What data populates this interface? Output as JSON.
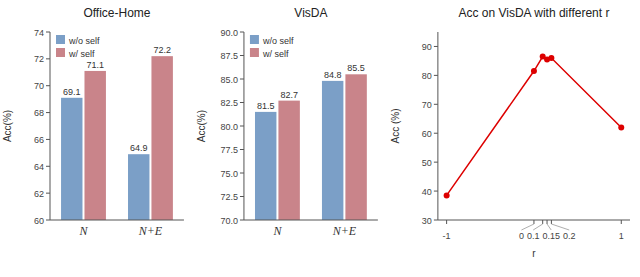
{
  "chart_data": [
    {
      "type": "bar",
      "title": "Office-Home",
      "ylabel": "Acc(%)",
      "categories": [
        "N",
        "N+E"
      ],
      "series": [
        {
          "name": "w/o self",
          "color": "#7b9fc7",
          "values": [
            69.1,
            64.9
          ]
        },
        {
          "name": "w/ self",
          "color": "#c9848a",
          "values": [
            71.1,
            72.2
          ]
        }
      ],
      "ylim": [
        60,
        74
      ],
      "yticks": [
        60,
        62,
        64,
        66,
        68,
        70,
        72,
        74
      ],
      "legend": "upper left",
      "data_labels": true,
      "grid": false
    },
    {
      "type": "bar",
      "title": "VisDA",
      "ylabel": "Acc(%)",
      "categories": [
        "N",
        "N+E"
      ],
      "series": [
        {
          "name": "w/o self",
          "color": "#7b9fc7",
          "values": [
            81.5,
            84.8
          ]
        },
        {
          "name": "w/ self",
          "color": "#c9848a",
          "values": [
            82.7,
            85.5
          ]
        }
      ],
      "ylim": [
        70.0,
        90.0
      ],
      "yticks": [
        {
          "value": 70,
          "label": "70.0"
        },
        72.5,
        {
          "value": 75,
          "label": "75.0"
        },
        77.5,
        {
          "value": 80,
          "label": "80.0"
        },
        82.5,
        {
          "value": 85,
          "label": "85.0"
        },
        87.5,
        {
          "value": 90,
          "label": "90.0"
        }
      ],
      "legend": "upper left",
      "data_labels": true,
      "grid": false
    },
    {
      "type": "line",
      "title": "Acc on VisDA with different r",
      "xlabel": "r",
      "ylabel": "Acc (%)",
      "x": [
        -1,
        0,
        0.1,
        0.15,
        0.2,
        1
      ],
      "values": [
        38.5,
        81.5,
        86.5,
        85.5,
        86.0,
        62.0
      ],
      "color": "#dd0000",
      "marker": "circle",
      "xlim": [
        -1.1,
        1.1
      ],
      "xticks": [
        -1,
        0,
        0.1,
        0.15,
        0.2,
        1
      ],
      "ylim": [
        30,
        95
      ],
      "yticks": [
        30,
        40,
        50,
        60,
        70,
        80,
        90
      ],
      "grid": false
    }
  ]
}
